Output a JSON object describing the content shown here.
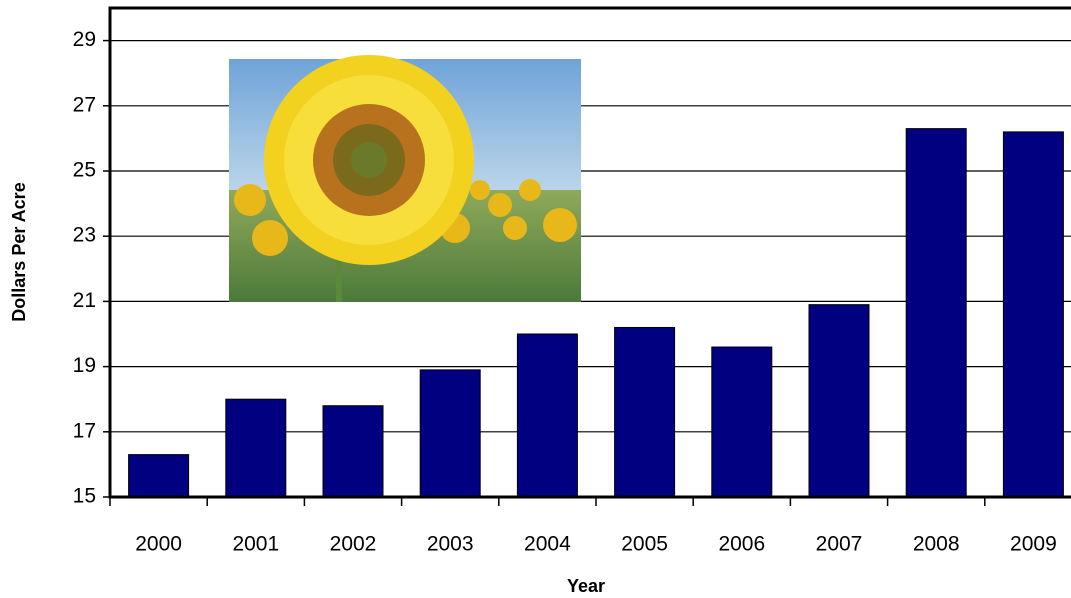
{
  "chart_data": {
    "type": "bar",
    "x_label": "Year",
    "y_label": "Dollars Per Acre",
    "categories": [
      "2000",
      "2001",
      "2002",
      "2003",
      "2004",
      "2005",
      "2006",
      "2007",
      "2008",
      "2009"
    ],
    "values": [
      16.3,
      18.0,
      17.8,
      18.9,
      20.0,
      20.2,
      19.6,
      20.9,
      26.3,
      26.2
    ],
    "color": "#000080",
    "ylim": [
      15,
      30
    ],
    "yticks": [
      15,
      17,
      19,
      21,
      23,
      25,
      27,
      29
    ],
    "grid": true
  }
}
